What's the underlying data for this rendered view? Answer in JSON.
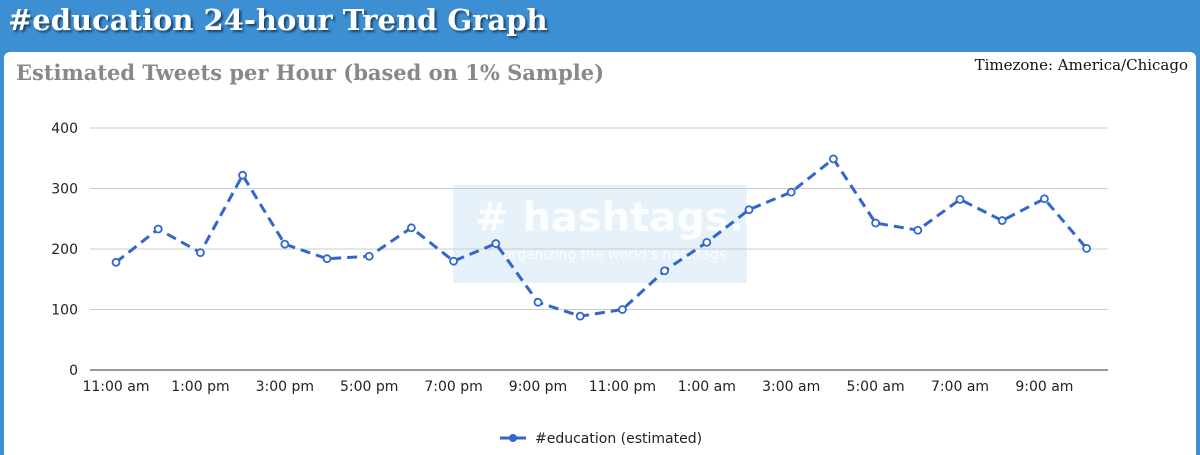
{
  "header": {
    "title": "#education 24-hour Trend Graph"
  },
  "panel": {
    "timezone": "Timezone: America/Chicago"
  },
  "watermark": {
    "brand": "# hashtags.org",
    "tagline": "organizing the world's hashtags"
  },
  "colors": {
    "header_bg": "#3d8fd4",
    "series": "#3366cc",
    "grid": "#cccccc"
  },
  "chart_data": {
    "type": "line",
    "title": "Estimated Tweets per Hour (based on 1% Sample)",
    "xlabel": "",
    "ylabel": "",
    "ylim": [
      0,
      400
    ],
    "yticks": [
      0,
      100,
      200,
      300,
      400
    ],
    "grid": true,
    "legend_position": "bottom",
    "x": [
      "11:00 am",
      "12:00 pm",
      "1:00 pm",
      "2:00 pm",
      "3:00 pm",
      "4:00 pm",
      "5:00 pm",
      "6:00 pm",
      "7:00 pm",
      "8:00 pm",
      "9:00 pm",
      "10:00 pm",
      "11:00 pm",
      "12:00 am",
      "1:00 am",
      "2:00 am",
      "3:00 am",
      "4:00 am",
      "5:00 am",
      "6:00 am",
      "7:00 am",
      "8:00 am",
      "9:00 am",
      "10:00 am"
    ],
    "xtick_labels": [
      "11:00 am",
      "1:00 pm",
      "3:00 pm",
      "5:00 pm",
      "7:00 pm",
      "9:00 pm",
      "11:00 pm",
      "1:00 am",
      "3:00 am",
      "5:00 am",
      "7:00 am",
      "9:00 am"
    ],
    "series": [
      {
        "name": "#education (estimated)",
        "values": [
          178,
          233,
          194,
          322,
          208,
          184,
          188,
          235,
          180,
          209,
          112,
          89,
          100,
          164,
          211,
          265,
          294,
          349,
          243,
          231,
          282,
          247,
          283,
          201
        ]
      }
    ]
  }
}
